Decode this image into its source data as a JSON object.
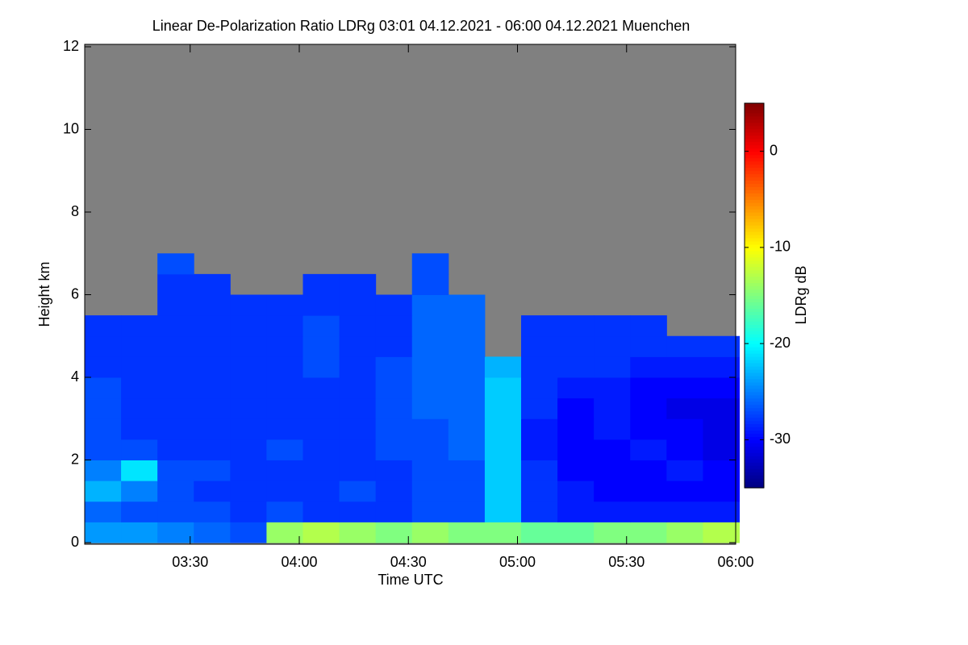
{
  "chart_data": {
    "type": "heatmap",
    "title": "Linear De-Polarization Ratio LDRg   03:01 04.12.2021 - 06:00 04.12.2021 Muenchen",
    "x_label": "Time UTC",
    "y_label": "Height km",
    "colorbar_label": "LDRg dB",
    "xlim": [
      181,
      360
    ],
    "xticks": [
      {
        "value": 210,
        "label": "03:30"
      },
      {
        "value": 240,
        "label": "04:00"
      },
      {
        "value": 270,
        "label": "04:30"
      },
      {
        "value": 300,
        "label": "05:00"
      },
      {
        "value": 330,
        "label": "05:30"
      },
      {
        "value": 360,
        "label": "06:00"
      }
    ],
    "ylim": [
      0,
      12
    ],
    "yticks": [
      0,
      2,
      4,
      6,
      8,
      10,
      12
    ],
    "zlim": [
      -35,
      5
    ],
    "zticks": [
      0,
      -10,
      -20,
      -30
    ],
    "colormap": "jet",
    "missing_color": "#808080",
    "x": [
      186,
      196,
      206,
      216,
      226,
      236,
      246,
      256,
      266,
      276,
      286,
      296,
      306,
      316,
      326,
      336,
      346,
      356
    ],
    "y": [
      0.25,
      0.75,
      1.25,
      1.75,
      2.25,
      2.75,
      3.25,
      3.75,
      4.25,
      4.75,
      5.25,
      5.75,
      6.25,
      6.75
    ],
    "z": [
      [
        -24,
        -24,
        -25,
        -26,
        -27,
        -14,
        -13,
        -14,
        -15,
        -14,
        -15,
        -15,
        -16,
        -16,
        -15,
        -15,
        -14,
        -13
      ],
      [
        -26,
        -27,
        -27,
        -27,
        -28,
        -27,
        -28,
        -28,
        -28,
        -27,
        -27,
        -22,
        -28,
        -29,
        -29,
        -29,
        -29,
        -29
      ],
      [
        -23,
        -25,
        -27,
        -28,
        -28,
        -28,
        -28,
        -27,
        -28,
        -27,
        -27,
        -22,
        -28,
        -29,
        -30,
        -30,
        -30,
        -30
      ],
      [
        -25,
        -21,
        -27,
        -27,
        -28,
        -28,
        -28,
        -28,
        -28,
        -27,
        -27,
        -22,
        -28,
        -30,
        -30,
        -30,
        -29,
        -30
      ],
      [
        -27,
        -27,
        -28,
        -28,
        -28,
        -27,
        -28,
        -28,
        -27,
        -27,
        -26,
        -22,
        -29,
        -30,
        -30,
        -29,
        -30,
        -31
      ],
      [
        -27,
        -28,
        -28,
        -28,
        -28,
        -28,
        -28,
        -28,
        -27,
        -27,
        -26,
        -22,
        -29,
        -30,
        -29,
        -30,
        -30,
        -31
      ],
      [
        -27,
        -28,
        -28,
        -28,
        -28,
        -28,
        -28,
        -28,
        -27,
        -26,
        -26,
        -22,
        -28,
        -30,
        -29,
        -30,
        -31,
        -31
      ],
      [
        -27,
        -28,
        -28,
        -28,
        -28,
        -28,
        -28,
        -28,
        -27,
        -26,
        -26,
        -22,
        -28,
        -29,
        -29,
        -30,
        -30,
        -30
      ],
      [
        -28,
        -28,
        -28,
        -28,
        -28,
        -28,
        -27,
        -28,
        -27,
        -26,
        -26,
        -23,
        -28,
        -28,
        -28,
        -29,
        -29,
        -29
      ],
      [
        -28,
        -28,
        -28,
        -28,
        -28,
        -28,
        -27,
        -28,
        -28,
        -26,
        -26,
        null,
        -28,
        -28,
        -28,
        -28,
        -28,
        -28
      ],
      [
        -28,
        -28,
        -28,
        -28,
        -28,
        -28,
        -27,
        -28,
        -28,
        -26,
        -26,
        null,
        -28,
        -28,
        -28,
        -28,
        null,
        null
      ],
      [
        null,
        null,
        -28,
        -28,
        -28,
        -28,
        -28,
        -28,
        -28,
        -26,
        -26,
        null,
        null,
        null,
        null,
        null,
        null,
        null
      ],
      [
        null,
        null,
        -28,
        -28,
        null,
        null,
        -28,
        -28,
        null,
        -27,
        null,
        null,
        null,
        null,
        null,
        null,
        null,
        null
      ],
      [
        null,
        null,
        -27,
        null,
        null,
        null,
        null,
        null,
        null,
        -27,
        null,
        null,
        null,
        null,
        null,
        null,
        null,
        null
      ]
    ]
  }
}
